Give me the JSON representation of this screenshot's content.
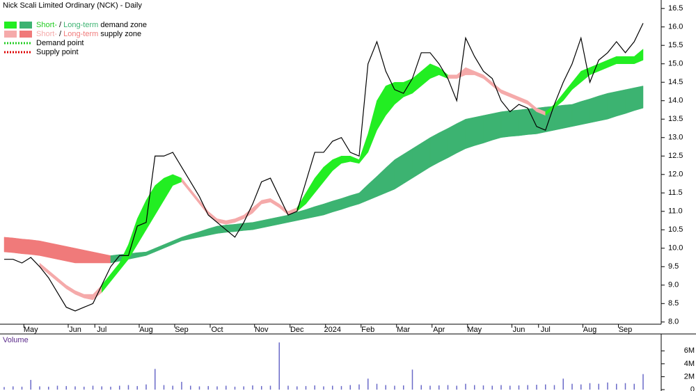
{
  "chart_data": {
    "type": "stock",
    "title": "Nick Scali Limited Ordinary (NCK) - Daily",
    "categories": [
      null,
      null,
      null,
      "May",
      null,
      null,
      null,
      null,
      "Jun",
      null,
      null,
      "Jul",
      null,
      null,
      null,
      null,
      "Aug",
      null,
      null,
      null,
      "Sep",
      null,
      null,
      null,
      "Oct",
      null,
      null,
      null,
      null,
      "Nov",
      null,
      null,
      null,
      "Dec",
      null,
      null,
      null,
      "2024",
      null,
      null,
      null,
      "Feb",
      null,
      null,
      null,
      "Mar",
      null,
      null,
      null,
      "Apr",
      null,
      null,
      null,
      "May",
      null,
      null,
      null,
      null,
      "Jun",
      null,
      null,
      "Jul",
      null,
      null,
      null,
      null,
      "Aug",
      null,
      null,
      null,
      "Sep",
      null,
      null
    ],
    "series": [
      {
        "color": "#000000",
        "values": [
          9.7,
          9.7,
          9.6,
          9.75,
          9.5,
          9.2,
          8.8,
          8.4,
          8.3,
          8.4,
          8.5,
          9.0,
          9.5,
          9.8,
          9.8,
          10.6,
          10.7,
          12.5,
          12.5,
          12.6,
          12.2,
          11.8,
          11.4,
          10.9,
          10.7,
          10.5,
          10.3,
          10.7,
          11.2,
          11.8,
          11.9,
          11.4,
          10.9,
          11.0,
          11.8,
          12.6,
          12.6,
          12.9,
          13.0,
          12.6,
          12.5,
          15.0,
          15.6,
          14.8,
          14.3,
          14.2,
          14.6,
          15.3,
          15.3,
          15.0,
          14.6,
          14.0,
          15.7,
          15.2,
          14.8,
          14.6,
          14.0,
          13.7,
          13.9,
          13.8,
          13.3,
          13.2,
          13.9,
          14.5,
          15.0,
          15.7,
          14.5,
          15.1,
          15.3,
          15.6,
          15.3,
          15.6,
          16.1
        ]
      }
    ],
    "long_zone": {
      "upper": [
        10.3,
        10.28,
        10.25,
        10.23,
        10.2,
        10.15,
        10.1,
        10.05,
        10.0,
        9.95,
        9.9,
        9.85,
        9.8,
        9.83,
        9.85,
        9.88,
        9.9,
        10.0,
        10.1,
        10.2,
        10.3,
        10.38,
        10.45,
        10.53,
        10.6,
        10.63,
        10.65,
        10.68,
        10.7,
        10.75,
        10.8,
        10.85,
        10.9,
        10.98,
        11.05,
        11.13,
        11.2,
        11.28,
        11.35,
        11.43,
        11.5,
        11.73,
        11.95,
        12.18,
        12.4,
        12.55,
        12.7,
        12.85,
        13.0,
        13.13,
        13.25,
        13.38,
        13.5,
        13.55,
        13.6,
        13.65,
        13.7,
        13.73,
        13.75,
        13.78,
        13.8,
        13.83,
        13.85,
        13.88,
        13.9,
        13.98,
        14.05,
        14.13,
        14.2,
        14.25,
        14.3,
        14.35,
        14.4
      ],
      "lower": [
        9.9,
        9.88,
        9.85,
        9.83,
        9.8,
        9.75,
        9.7,
        9.65,
        9.6,
        9.6,
        9.6,
        9.6,
        9.6,
        9.65,
        9.7,
        9.75,
        9.8,
        9.9,
        10.0,
        10.1,
        10.2,
        10.25,
        10.3,
        10.35,
        10.4,
        10.43,
        10.45,
        10.48,
        10.5,
        10.55,
        10.6,
        10.65,
        10.7,
        10.75,
        10.8,
        10.85,
        10.9,
        10.98,
        11.05,
        11.13,
        11.2,
        11.3,
        11.4,
        11.5,
        11.6,
        11.75,
        11.9,
        12.05,
        12.2,
        12.33,
        12.45,
        12.58,
        12.7,
        12.78,
        12.85,
        12.93,
        13.0,
        13.03,
        13.05,
        13.08,
        13.1,
        13.15,
        13.2,
        13.25,
        13.3,
        13.35,
        13.4,
        13.45,
        13.5,
        13.58,
        13.65,
        13.73,
        13.8
      ],
      "colors": [
        "#f07a7a",
        "#f07a7a",
        "#f07a7a",
        "#f07a7a",
        "#f07a7a",
        "#f07a7a",
        "#f07a7a",
        "#f07a7a",
        "#f07a7a",
        "#f07a7a",
        "#f07a7a",
        "#f07a7a",
        "#3cb371",
        "#3cb371",
        "#3cb371",
        "#3cb371",
        "#3cb371",
        "#3cb371",
        "#3cb371",
        "#3cb371",
        "#3cb371",
        "#3cb371",
        "#3cb371",
        "#3cb371",
        "#3cb371",
        "#3cb371",
        "#3cb371",
        "#3cb371",
        "#3cb371",
        "#3cb371",
        "#3cb371",
        "#3cb371",
        "#3cb371",
        "#3cb371",
        "#3cb371",
        "#3cb371",
        "#3cb371",
        "#3cb371",
        "#3cb371",
        "#3cb371",
        "#3cb371",
        "#3cb371",
        "#3cb371",
        "#3cb371",
        "#3cb371",
        "#3cb371",
        "#3cb371",
        "#3cb371",
        "#3cb371",
        "#3cb371",
        "#3cb371",
        "#3cb371",
        "#3cb371",
        "#3cb371",
        "#3cb371",
        "#3cb371",
        "#3cb371",
        "#3cb371",
        "#3cb371",
        "#3cb371",
        "#3cb371",
        "#3cb371",
        "#3cb371",
        "#3cb371",
        "#3cb371",
        "#3cb371",
        "#3cb371",
        "#3cb371",
        "#3cb371",
        "#3cb371",
        "#3cb371",
        "#3cb371",
        "#3cb371"
      ]
    },
    "short_zone": {
      "upper": [
        null,
        null,
        null,
        null,
        9.6,
        9.4,
        9.2,
        9.0,
        8.85,
        8.75,
        8.75,
        9.0,
        9.3,
        9.6,
        10.1,
        10.8,
        11.3,
        11.7,
        11.9,
        12.0,
        11.9,
        11.6,
        11.3,
        11.0,
        10.8,
        10.75,
        10.8,
        10.9,
        11.1,
        11.3,
        11.35,
        11.2,
        11.0,
        11.1,
        11.5,
        11.9,
        12.2,
        12.4,
        12.5,
        12.5,
        12.4,
        13.1,
        14.0,
        14.4,
        14.5,
        14.5,
        14.6,
        14.8,
        15.0,
        14.9,
        14.7,
        14.7,
        14.9,
        14.8,
        14.7,
        14.5,
        14.3,
        14.2,
        14.1,
        14.0,
        13.8,
        13.7,
        13.9,
        14.2,
        14.5,
        14.8,
        14.9,
        15.0,
        15.1,
        15.2,
        15.2,
        15.2,
        15.4
      ],
      "lower": [
        null,
        null,
        null,
        null,
        9.5,
        9.3,
        9.1,
        8.9,
        8.75,
        8.65,
        8.6,
        8.8,
        9.1,
        9.4,
        9.7,
        10.1,
        10.5,
        10.9,
        11.3,
        11.7,
        11.8,
        11.5,
        11.2,
        10.9,
        10.7,
        10.65,
        10.7,
        10.8,
        10.95,
        11.2,
        11.25,
        11.1,
        10.9,
        11.0,
        11.2,
        11.5,
        11.8,
        12.1,
        12.3,
        12.35,
        12.3,
        12.6,
        13.2,
        13.6,
        13.9,
        14.1,
        14.2,
        14.4,
        14.6,
        14.7,
        14.6,
        14.6,
        14.7,
        14.7,
        14.6,
        14.4,
        14.2,
        14.1,
        14.0,
        13.9,
        13.7,
        13.6,
        13.8,
        14.0,
        14.3,
        14.5,
        14.7,
        14.8,
        14.9,
        15.0,
        15.0,
        15.0,
        15.1
      ],
      "colors": [
        null,
        null,
        null,
        null,
        "#f5aaaa",
        "#f5aaaa",
        "#f5aaaa",
        "#f5aaaa",
        "#f5aaaa",
        "#f5aaaa",
        "#f5aaaa",
        "#22ee22",
        "#22ee22",
        "#22ee22",
        "#22ee22",
        "#22ee22",
        "#22ee22",
        "#22ee22",
        "#22ee22",
        "#22ee22",
        "#f5aaaa",
        "#f5aaaa",
        "#f5aaaa",
        "#f5aaaa",
        "#f5aaaa",
        "#f5aaaa",
        "#f5aaaa",
        "#f5aaaa",
        "#f5aaaa",
        "#f5aaaa",
        "#f5aaaa",
        "#f5aaaa",
        "#f5aaaa",
        "#22ee22",
        "#22ee22",
        "#22ee22",
        "#22ee22",
        "#22ee22",
        "#22ee22",
        "#22ee22",
        "#22ee22",
        "#22ee22",
        "#22ee22",
        "#22ee22",
        "#22ee22",
        "#22ee22",
        "#22ee22",
        "#22ee22",
        "#22ee22",
        "#22ee22",
        "#f5aaaa",
        "#f5aaaa",
        "#f5aaaa",
        "#f5aaaa",
        "#f5aaaa",
        "#f5aaaa",
        "#f5aaaa",
        "#f5aaaa",
        "#f5aaaa",
        "#f5aaaa",
        "#f5aaaa",
        "#22ee22",
        "#22ee22",
        "#22ee22",
        "#22ee22",
        "#22ee22",
        "#22ee22",
        "#22ee22",
        "#22ee22",
        "#22ee22",
        "#22ee22",
        "#22ee22",
        "#22ee22"
      ]
    },
    "ylim": [
      7.94,
      16.73
    ],
    "yticks": [
      {
        "value": 8,
        "label": "8.0"
      },
      8.5,
      {
        "value": 9,
        "label": "9.0"
      },
      9.5,
      {
        "value": 10,
        "label": "10.0"
      },
      10.5,
      {
        "value": 11,
        "label": "11.0"
      },
      11.5,
      {
        "value": 12,
        "label": "12.0"
      },
      12.5,
      {
        "value": 13,
        "label": "13.0"
      },
      13.5,
      {
        "value": 14,
        "label": "14.0"
      },
      14.5,
      {
        "value": 15,
        "label": "15.0"
      },
      15.5,
      {
        "value": 16,
        "label": "16.0"
      },
      16.5
    ],
    "legend": [
      {
        "parts": [
          {
            "text": "Short-",
            "color": "#22cc22"
          },
          {
            "text": "/",
            "color": "#000000"
          },
          {
            "text": "Long-term",
            "color": "#3cb371"
          },
          {
            "text": "demand zone",
            "color": "#000000"
          }
        ],
        "swatches": [
          "#22ee22",
          "#3cb371"
        ],
        "style": "box"
      },
      {
        "parts": [
          {
            "text": "Short-",
            "color": "#f5aaaa"
          },
          {
            "text": "/",
            "color": "#000000"
          },
          {
            "text": "Long-term",
            "color": "#f07a7a"
          },
          {
            "text": "supply zone",
            "color": "#000000"
          }
        ],
        "swatches": [
          "#f5aaaa",
          "#f07a7a"
        ],
        "style": "box"
      },
      {
        "parts": [
          {
            "text": "Demand point",
            "color": "#000000"
          }
        ],
        "swatches": [
          "#22cc22"
        ],
        "style": "dots"
      },
      {
        "parts": [
          {
            "text": "Supply point",
            "color": "#000000"
          }
        ],
        "swatches": [
          "#dd0000"
        ],
        "style": "dots"
      }
    ],
    "volume": {
      "title": "Volume",
      "color": "#6a6ac8",
      "values": [
        400000,
        500000,
        450000,
        1500000,
        500000,
        450000,
        600000,
        550000,
        500000,
        450000,
        600000,
        500000,
        450000,
        600000,
        700000,
        550000,
        800000,
        3200000,
        700000,
        600000,
        1200000,
        600000,
        500000,
        550000,
        500000,
        600000,
        450000,
        500000,
        650000,
        550000,
        600000,
        7300000,
        600000,
        500000,
        550000,
        650000,
        500000,
        600000,
        550000,
        700000,
        800000,
        1700000,
        900000,
        700000,
        600000,
        650000,
        3100000,
        700000,
        600000,
        650000,
        700000,
        600000,
        900000,
        700000,
        650000,
        600000,
        700000,
        600000,
        650000,
        700000,
        750000,
        800000,
        700000,
        1700000,
        900000,
        800000,
        1000000,
        900000,
        1100000,
        900000,
        1000000,
        900000,
        2400000
      ],
      "ylim": [
        0,
        8400000
      ],
      "yticks": [
        0,
        {
          "value": 2000000,
          "label": "2M"
        },
        {
          "value": 4000000,
          "label": "4M"
        },
        {
          "value": 6000000,
          "label": "6M"
        }
      ]
    }
  }
}
